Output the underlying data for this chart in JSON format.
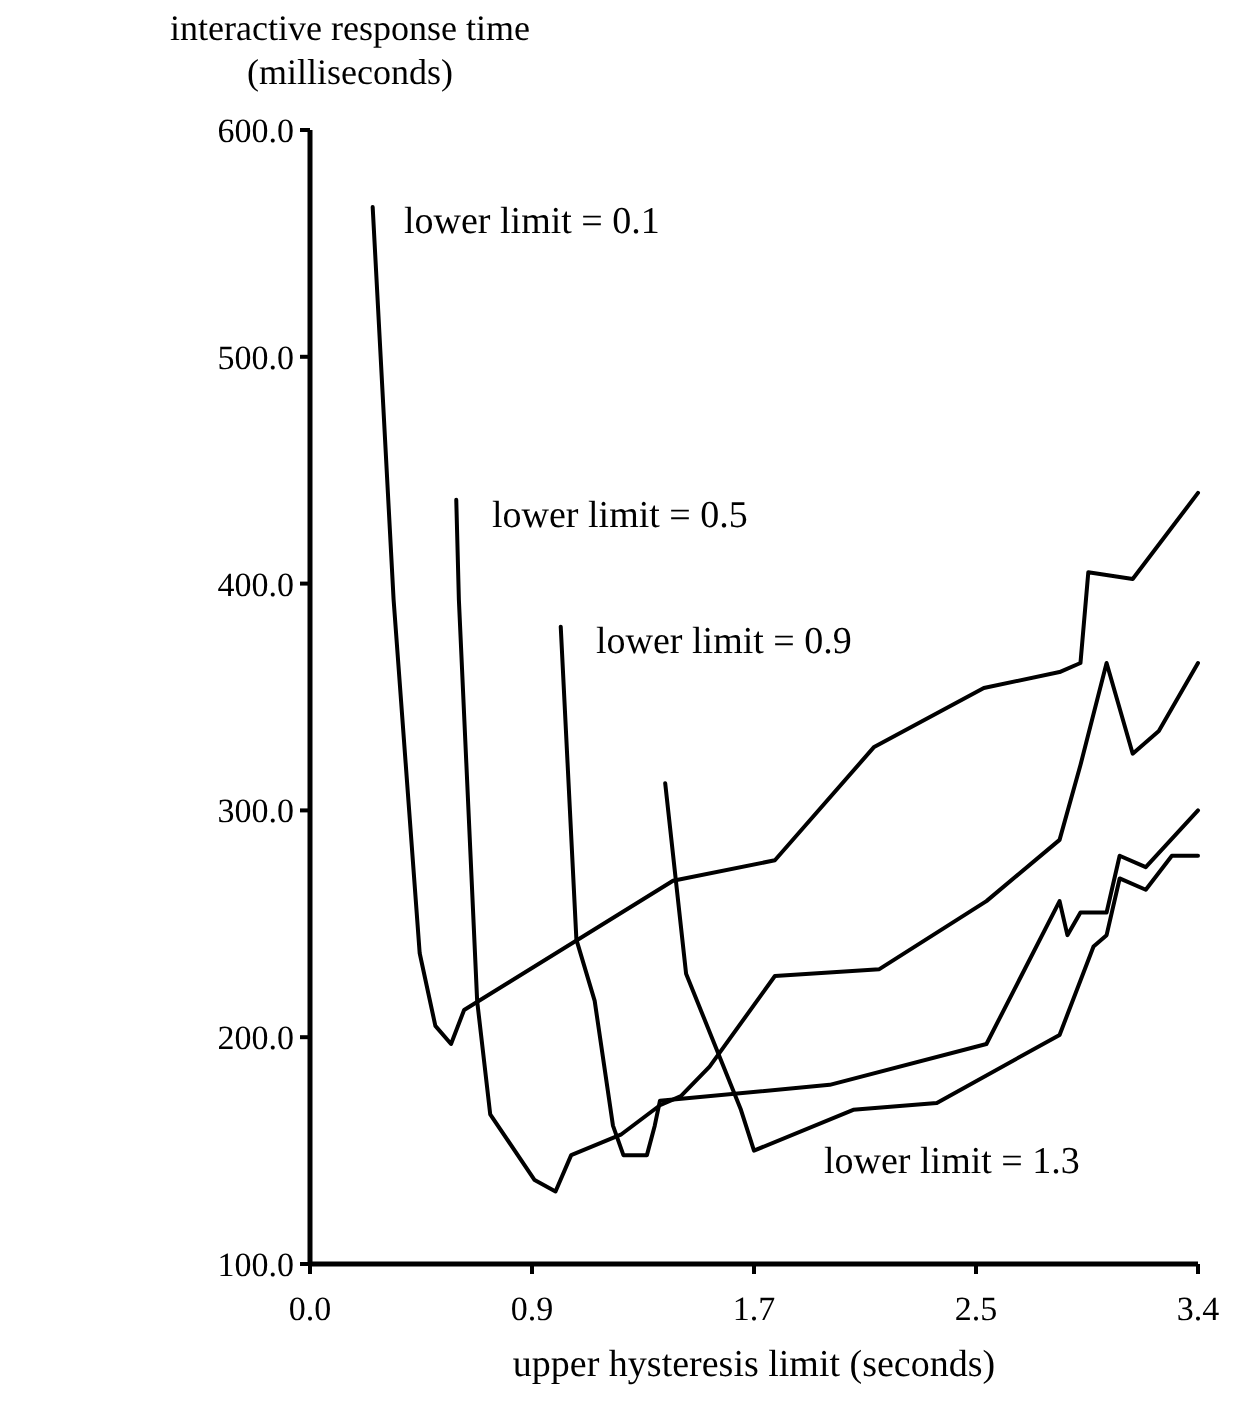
{
  "chart_data": {
    "type": "line",
    "xlabel": "upper hysteresis limit (seconds)",
    "ylabel": "interactive response time\n(milliseconds)",
    "xlim": [
      0,
      3.4
    ],
    "ylim": [
      100,
      600
    ],
    "xticks": [
      {
        "value": 0,
        "label": "0.0"
      },
      {
        "value": 0.85,
        "label": "0.9"
      },
      {
        "value": 1.7,
        "label": "1.7"
      },
      {
        "value": 2.55,
        "label": "2.5"
      },
      {
        "value": 3.4,
        "label": "3.4"
      }
    ],
    "yticks": [
      {
        "value": 100,
        "label": "100.0"
      },
      {
        "value": 200,
        "label": "200.0"
      },
      {
        "value": 300,
        "label": "300.0"
      },
      {
        "value": 400,
        "label": "400.0"
      },
      {
        "value": 500,
        "label": "500.0"
      },
      {
        "value": 600,
        "label": "600.0"
      }
    ],
    "grid": false,
    "marker": "none",
    "line_style": "solid",
    "series": [
      {
        "color": "#000000",
        "x": [
          0.24,
          0.32,
          0.42,
          0.48,
          0.54,
          0.59,
          1.39,
          1.78,
          2.16,
          2.58,
          2.87,
          2.95,
          2.98,
          3.15,
          3.4
        ],
        "values": [
          566,
          393,
          237,
          205,
          197,
          212,
          269,
          278,
          328,
          354,
          361,
          365,
          405,
          402,
          440
        ]
      },
      {
        "color": "#000000",
        "x": [
          0.56,
          0.57,
          0.64,
          0.69,
          0.86,
          0.94,
          1.0,
          1.19,
          1.34,
          1.42,
          1.53,
          1.78,
          2.18,
          2.59,
          2.87,
          2.95,
          3.05,
          3.15,
          3.25,
          3.4
        ],
        "values": [
          437,
          393,
          216,
          166,
          137,
          132,
          148,
          157,
          170,
          174,
          187,
          227,
          230,
          260,
          287,
          320,
          365,
          325,
          335,
          365
        ]
      },
      {
        "color": "#000000",
        "x": [
          0.96,
          1.02,
          1.09,
          1.16,
          1.2,
          1.29,
          1.32,
          1.34,
          1.99,
          2.59,
          2.87,
          2.9,
          2.95,
          3.05,
          3.1,
          3.2,
          3.4
        ],
        "values": [
          381,
          243,
          216,
          161,
          148,
          148,
          161,
          172,
          179,
          197,
          260,
          245,
          255,
          255,
          280,
          275,
          300
        ]
      },
      {
        "color": "#000000",
        "x": [
          1.36,
          1.44,
          1.65,
          1.7,
          2.08,
          2.4,
          2.87,
          2.9,
          3.0,
          3.05,
          3.1,
          3.2,
          3.3,
          3.4
        ],
        "values": [
          312,
          228,
          168,
          150,
          168,
          171,
          201,
          210,
          240,
          245,
          270,
          265,
          280,
          280
        ]
      }
    ],
    "annotations": [
      "lower limit = 0.1",
      "lower limit = 0.5",
      "lower limit = 0.9",
      "lower limit = 1.3"
    ]
  }
}
